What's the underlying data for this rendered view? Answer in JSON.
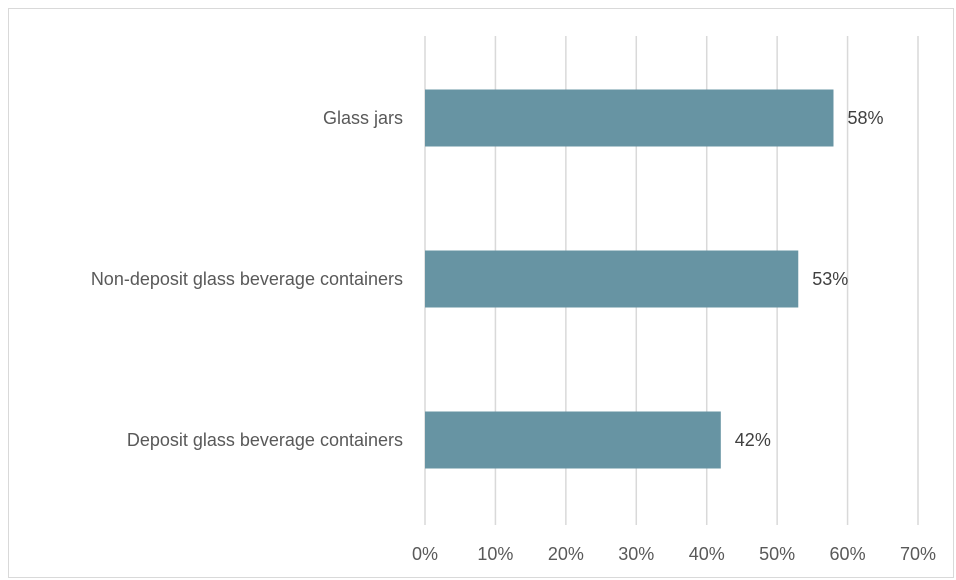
{
  "chart_data": {
    "type": "bar",
    "orientation": "horizontal",
    "categories": [
      "Glass jars",
      "Non-deposit glass beverage containers",
      "Deposit glass beverage containers"
    ],
    "values": [
      58,
      53,
      42
    ],
    "data_labels": [
      "58%",
      "53%",
      "42%"
    ],
    "x_ticks": [
      "0%",
      "10%",
      "20%",
      "30%",
      "40%",
      "50%",
      "60%",
      "70%"
    ],
    "xlim": [
      0,
      70
    ],
    "grid": true,
    "legend": false,
    "colors": {
      "bar": "#6794a3",
      "grid": "#d9d9d9",
      "text": "#595959"
    }
  }
}
